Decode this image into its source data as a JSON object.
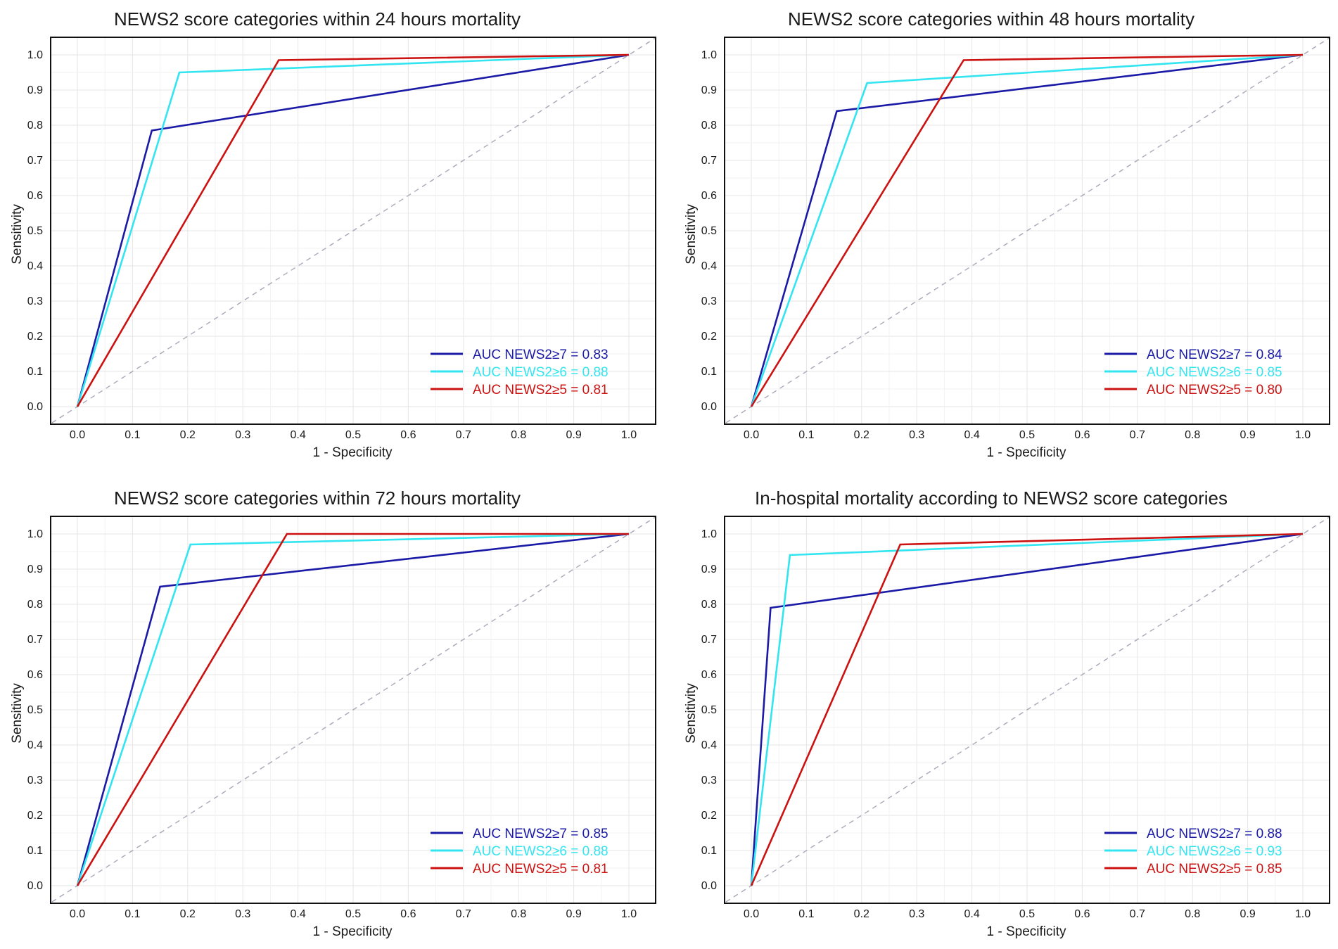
{
  "chart_data": [
    {
      "type": "line",
      "title": "NEWS2 score categories within 24 hours mortality",
      "xlabel": "1 - Specificity",
      "ylabel": "Sensitivity",
      "xlim": [
        0,
        1
      ],
      "ylim": [
        0,
        1
      ],
      "x_ticks": [
        "0.0",
        "0.1",
        "0.2",
        "0.3",
        "0.4",
        "0.5",
        "0.6",
        "0.7",
        "0.8",
        "0.9",
        "1.0"
      ],
      "y_ticks": [
        "0.0",
        "0.1",
        "0.2",
        "0.3",
        "0.4",
        "0.5",
        "0.6",
        "0.7",
        "0.8",
        "0.9",
        "1.0"
      ],
      "grid": true,
      "legend_position": "bottom-right",
      "reference_line": "diagonal dashed",
      "series": [
        {
          "name": "AUC NEWS2≥7 = 0.83",
          "color": "#1a1aa6",
          "points": [
            [
              0,
              0
            ],
            [
              0.135,
              0.785
            ],
            [
              1,
              1
            ]
          ]
        },
        {
          "name": "AUC NEWS2≥6 = 0.88",
          "color": "#33e5f0",
          "points": [
            [
              0,
              0
            ],
            [
              0.185,
              0.95
            ],
            [
              1,
              1
            ]
          ]
        },
        {
          "name": "AUC NEWS2≥5 = 0.81",
          "color": "#cc1111",
          "points": [
            [
              0,
              0
            ],
            [
              0.365,
              0.985
            ],
            [
              1,
              1
            ]
          ]
        }
      ]
    },
    {
      "type": "line",
      "title": "NEWS2 score categories within 48 hours mortality",
      "xlabel": "1 - Specificity",
      "ylabel": "Sensitivity",
      "xlim": [
        0,
        1
      ],
      "ylim": [
        0,
        1
      ],
      "x_ticks": [
        "0.0",
        "0.1",
        "0.2",
        "0.3",
        "0.4",
        "0.5",
        "0.6",
        "0.7",
        "0.8",
        "0.9",
        "1.0"
      ],
      "y_ticks": [
        "0.0",
        "0.1",
        "0.2",
        "0.3",
        "0.4",
        "0.5",
        "0.6",
        "0.7",
        "0.8",
        "0.9",
        "1.0"
      ],
      "grid": true,
      "legend_position": "bottom-right",
      "reference_line": "diagonal dashed",
      "series": [
        {
          "name": "AUC NEWS2≥7 = 0.84",
          "color": "#1a1aa6",
          "points": [
            [
              0,
              0
            ],
            [
              0.155,
              0.84
            ],
            [
              1,
              1
            ]
          ]
        },
        {
          "name": "AUC NEWS2≥6 = 0.85",
          "color": "#33e5f0",
          "points": [
            [
              0,
              0
            ],
            [
              0.21,
              0.92
            ],
            [
              1,
              1
            ]
          ]
        },
        {
          "name": "AUC NEWS2≥5 = 0.80",
          "color": "#cc1111",
          "points": [
            [
              0,
              0
            ],
            [
              0.385,
              0.985
            ],
            [
              1,
              1
            ]
          ]
        }
      ]
    },
    {
      "type": "line",
      "title": "NEWS2 score categories within 72 hours mortality",
      "xlabel": "1 - Specificity",
      "ylabel": "Sensitivity",
      "xlim": [
        0,
        1
      ],
      "ylim": [
        0,
        1
      ],
      "x_ticks": [
        "0.0",
        "0.1",
        "0.2",
        "0.3",
        "0.4",
        "0.5",
        "0.6",
        "0.7",
        "0.8",
        "0.9",
        "1.0"
      ],
      "y_ticks": [
        "0.0",
        "0.1",
        "0.2",
        "0.3",
        "0.4",
        "0.5",
        "0.6",
        "0.7",
        "0.8",
        "0.9",
        "1.0"
      ],
      "grid": true,
      "legend_position": "bottom-right",
      "reference_line": "diagonal dashed",
      "series": [
        {
          "name": "AUC NEWS2≥7 = 0.85",
          "color": "#1a1aa6",
          "points": [
            [
              0,
              0
            ],
            [
              0.15,
              0.85
            ],
            [
              1,
              1
            ]
          ]
        },
        {
          "name": "AUC NEWS2≥6 = 0.88",
          "color": "#33e5f0",
          "points": [
            [
              0,
              0
            ],
            [
              0.205,
              0.97
            ],
            [
              1,
              1
            ]
          ]
        },
        {
          "name": "AUC NEWS2≥5 = 0.81",
          "color": "#cc1111",
          "points": [
            [
              0,
              0
            ],
            [
              0.38,
              1.0
            ],
            [
              1,
              1
            ]
          ]
        }
      ]
    },
    {
      "type": "line",
      "title": "In-hospital mortality according to NEWS2 score categories",
      "xlabel": "1 - Specificity",
      "ylabel": "Sensitivity",
      "xlim": [
        0,
        1
      ],
      "ylim": [
        0,
        1
      ],
      "x_ticks": [
        "0.0",
        "0.1",
        "0.2",
        "0.3",
        "0.4",
        "0.5",
        "0.6",
        "0.7",
        "0.8",
        "0.9",
        "1.0"
      ],
      "y_ticks": [
        "0.0",
        "0.1",
        "0.2",
        "0.3",
        "0.4",
        "0.5",
        "0.6",
        "0.7",
        "0.8",
        "0.9",
        "1.0"
      ],
      "grid": true,
      "legend_position": "bottom-right",
      "reference_line": "diagonal dashed",
      "series": [
        {
          "name": "AUC NEWS2≥7 = 0.88",
          "color": "#1a1aa6",
          "points": [
            [
              0,
              0
            ],
            [
              0.035,
              0.79
            ],
            [
              1,
              1
            ]
          ]
        },
        {
          "name": "AUC NEWS2≥6 = 0.93",
          "color": "#33e5f0",
          "points": [
            [
              0,
              0
            ],
            [
              0.07,
              0.94
            ],
            [
              1,
              1
            ]
          ]
        },
        {
          "name": "AUC NEWS2≥5 = 0.85",
          "color": "#cc1111",
          "points": [
            [
              0,
              0
            ],
            [
              0.27,
              0.97
            ],
            [
              1,
              1
            ]
          ]
        }
      ]
    }
  ]
}
